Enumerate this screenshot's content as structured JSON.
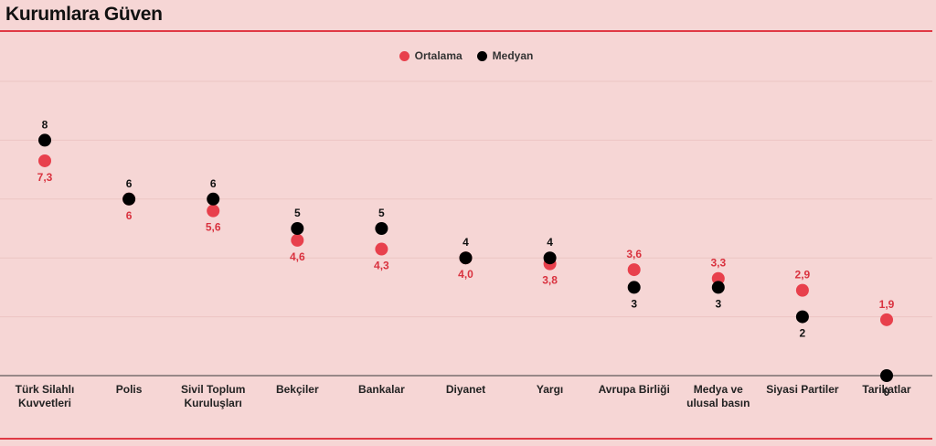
{
  "header": {
    "title": "Kurumlara Güven"
  },
  "colors": {
    "mean": "#e8404c",
    "median": "#000000",
    "rule": "#e03a45",
    "background": "#f6d6d5"
  },
  "chart_data": {
    "type": "scatter",
    "title": "Kurumlara Güven",
    "categories": [
      "Türk Silahlı Kuvvetleri",
      "Polis",
      "Sivil Toplum Kuruluşları",
      "Bekçiler",
      "Bankalar",
      "Diyanet",
      "Yargı",
      "Avrupa Birliği",
      "Medya ve ulusal basın",
      "Siyasi Partiler",
      "Tarikatlar"
    ],
    "category_lines": [
      [
        "Türk Silahlı",
        "Kuvvetleri"
      ],
      [
        "Polis"
      ],
      [
        "Sivil Toplum",
        "Kuruluşları"
      ],
      [
        "Bekçiler"
      ],
      [
        "Bankalar"
      ],
      [
        "Diyanet"
      ],
      [
        "Yargı"
      ],
      [
        "Avrupa Birliği"
      ],
      [
        "Medya ve",
        "ulusal basın"
      ],
      [
        "Siyasi Partiler"
      ],
      [
        "Tarikatlar"
      ]
    ],
    "series": [
      {
        "name": "Ortalama",
        "values": [
          7.3,
          6,
          5.6,
          4.6,
          4.3,
          4.0,
          3.8,
          3.6,
          3.3,
          2.9,
          1.9
        ],
        "labels": [
          "7,3",
          "6",
          "5,6",
          "4,6",
          "4,3",
          "4,0",
          "3,8",
          "3,6",
          "3,3",
          "2,9",
          "1,9"
        ]
      },
      {
        "name": "Medyan",
        "values": [
          8,
          6,
          6,
          5,
          5,
          4,
          4,
          3,
          3,
          2,
          0
        ],
        "labels": [
          "8",
          "6",
          "6",
          "5",
          "5",
          "4",
          "4",
          "3",
          "3",
          "2",
          "0"
        ]
      }
    ],
    "ylim": [
      0,
      10
    ],
    "grid": true,
    "legend_position": "top-center"
  }
}
